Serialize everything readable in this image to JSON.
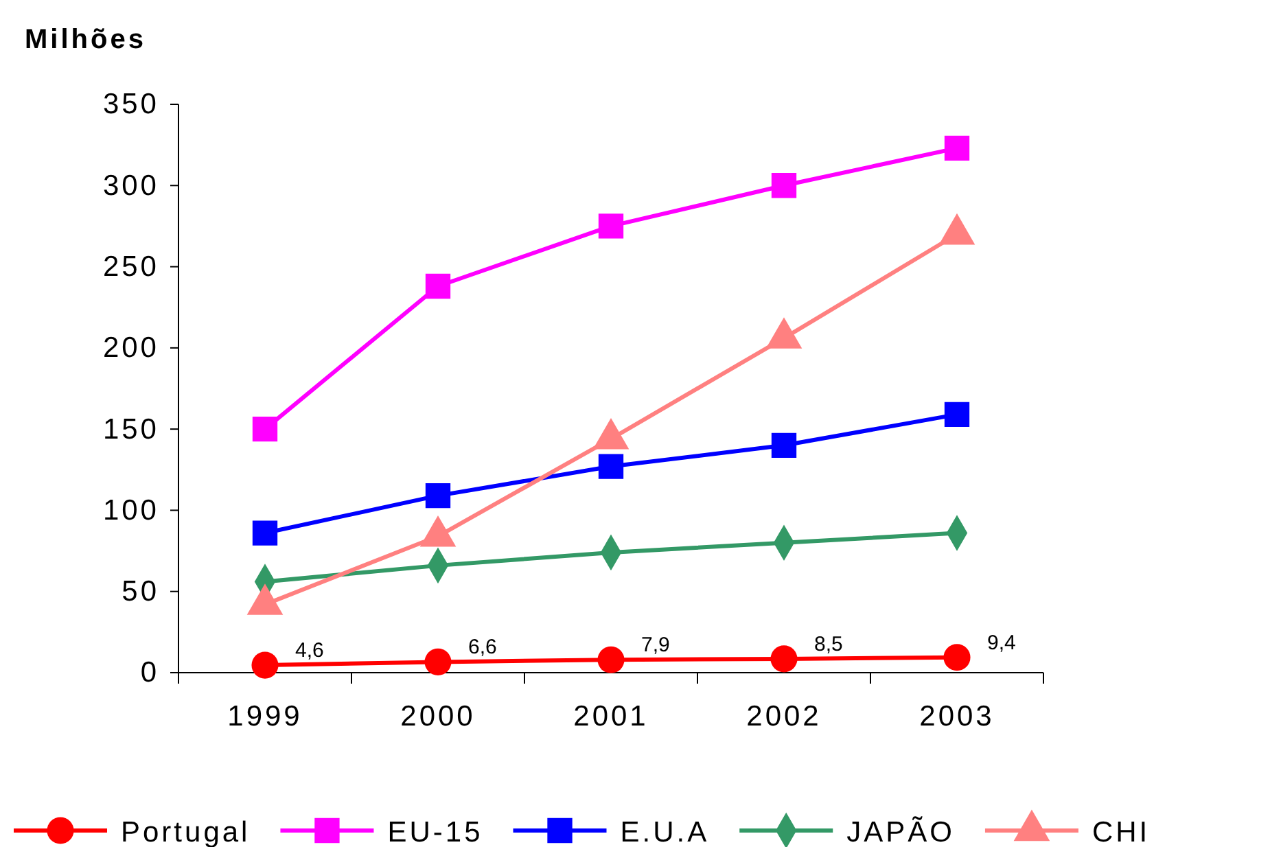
{
  "chart_data": {
    "type": "line",
    "ylabel": "Milhões",
    "categories": [
      "1999",
      "2000",
      "2001",
      "2002",
      "2003"
    ],
    "ylim": [
      0,
      350
    ],
    "yticks": [
      0,
      50,
      100,
      150,
      200,
      250,
      300,
      350
    ],
    "grid": false,
    "legend": "bottom",
    "series": [
      {
        "name": "Portugal",
        "color": "#ff0000",
        "marker": "circle",
        "values": [
          4.6,
          6.6,
          7.9,
          8.5,
          9.4
        ],
        "value_labels": [
          "4,6",
          "6,6",
          "7,9",
          "8,5",
          "9,4"
        ]
      },
      {
        "name": "EU-15",
        "color": "#ff00ff",
        "marker": "square",
        "values": [
          150,
          238,
          275,
          300,
          323
        ]
      },
      {
        "name": "E.U.A",
        "color": "#0000ff",
        "marker": "square",
        "values": [
          86,
          109,
          127,
          140,
          159
        ]
      },
      {
        "name": "JAPÃO",
        "color": "#339966",
        "marker": "diamond",
        "values": [
          56,
          66,
          74,
          80,
          86
        ]
      },
      {
        "name": "CHI",
        "color": "#ff8080",
        "marker": "triangle",
        "values": [
          42,
          84,
          144,
          206,
          270
        ]
      }
    ]
  }
}
